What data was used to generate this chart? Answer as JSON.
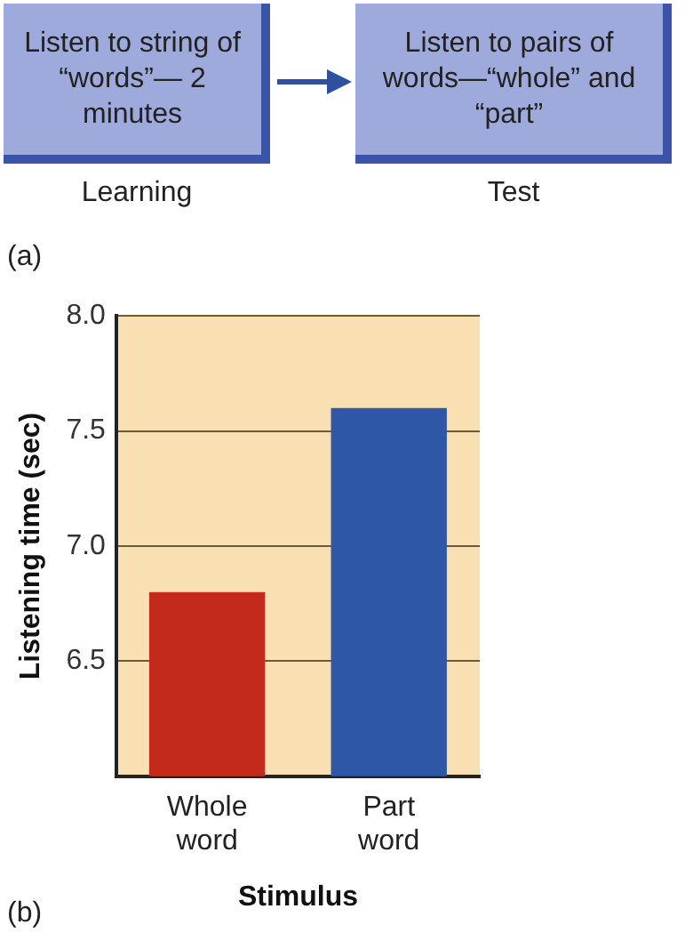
{
  "chart_data": {
    "type": "bar",
    "xlabel": "Stimulus",
    "ylabel": "Listening time (sec)",
    "categories": [
      "Whole word",
      "Part word"
    ],
    "values": [
      6.8,
      7.6
    ],
    "colors": [
      "#c42a1c",
      "#2f57a8"
    ],
    "ylim": [
      6.0,
      8.0
    ],
    "yticks": [
      {
        "value": 6.0,
        "label": null
      },
      6.5,
      {
        "value": 7.0,
        "label": "7.0"
      },
      7.5,
      {
        "value": 8.0,
        "label": "8.0"
      }
    ],
    "grid": "y",
    "legend": false,
    "annotations": [
      "Listen to string of “words”— 2 minutes",
      "Listen to pairs of words—“whole” and “part”",
      "Learning",
      "Test",
      "(a)",
      "(b)"
    ]
  }
}
